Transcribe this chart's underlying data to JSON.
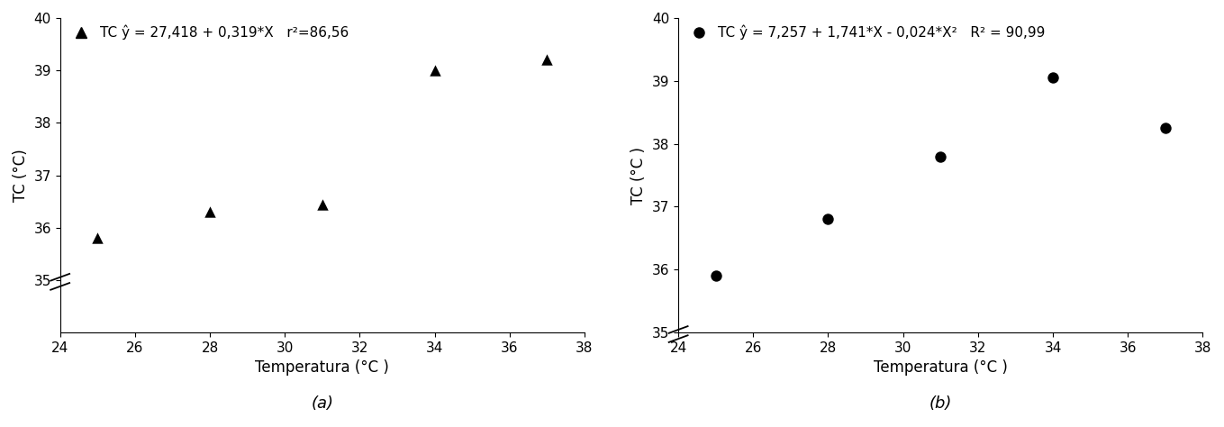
{
  "panel_a": {
    "x": [
      25,
      28,
      31,
      34,
      37
    ],
    "y": [
      35.8,
      36.3,
      36.45,
      39.0,
      39.2
    ],
    "marker": "^",
    "equation_parts": [
      "TC ŷ = 27,418 + 0,319*X",
      "r²=86,56"
    ],
    "xlabel": "Temperatura (°C )",
    "ylabel": "TC (°C)",
    "xlim": [
      24,
      38
    ],
    "ylim": [
      34,
      40
    ],
    "yticks": [
      35,
      36,
      37,
      38,
      39,
      40
    ],
    "xticks": [
      24,
      26,
      28,
      30,
      32,
      34,
      36,
      38
    ],
    "xtick_labels": [
      "24",
      "26",
      "28",
      "30",
      "32",
      "34",
      "36",
      "38"
    ],
    "subplot_label": "(a)",
    "break_y": 35
  },
  "panel_b": {
    "x": [
      25,
      28,
      31,
      34,
      37
    ],
    "y": [
      35.9,
      36.8,
      37.8,
      39.05,
      38.25
    ],
    "marker": "o",
    "equation_parts": [
      "TC ŷ = 7,257 + 1,741*X - 0,024*X²",
      "R² = 90,99"
    ],
    "xlabel": "Temperatura (°C )",
    "ylabel": "TC (°C )",
    "xlim": [
      24,
      38
    ],
    "ylim": [
      35,
      40
    ],
    "yticks": [
      35,
      36,
      37,
      38,
      39,
      40
    ],
    "xticks": [
      24,
      26,
      28,
      30,
      32,
      34,
      36,
      38
    ],
    "xtick_labels": [
      "24",
      "26",
      "28",
      "30",
      "32",
      "34",
      "36",
      "38"
    ],
    "subplot_label": "(b)",
    "break_y": 35
  },
  "marker_size": 80,
  "marker_color": "black",
  "tick_fontsize": 11,
  "label_fontsize": 12,
  "legend_fontsize": 11,
  "subplot_label_fontsize": 13
}
